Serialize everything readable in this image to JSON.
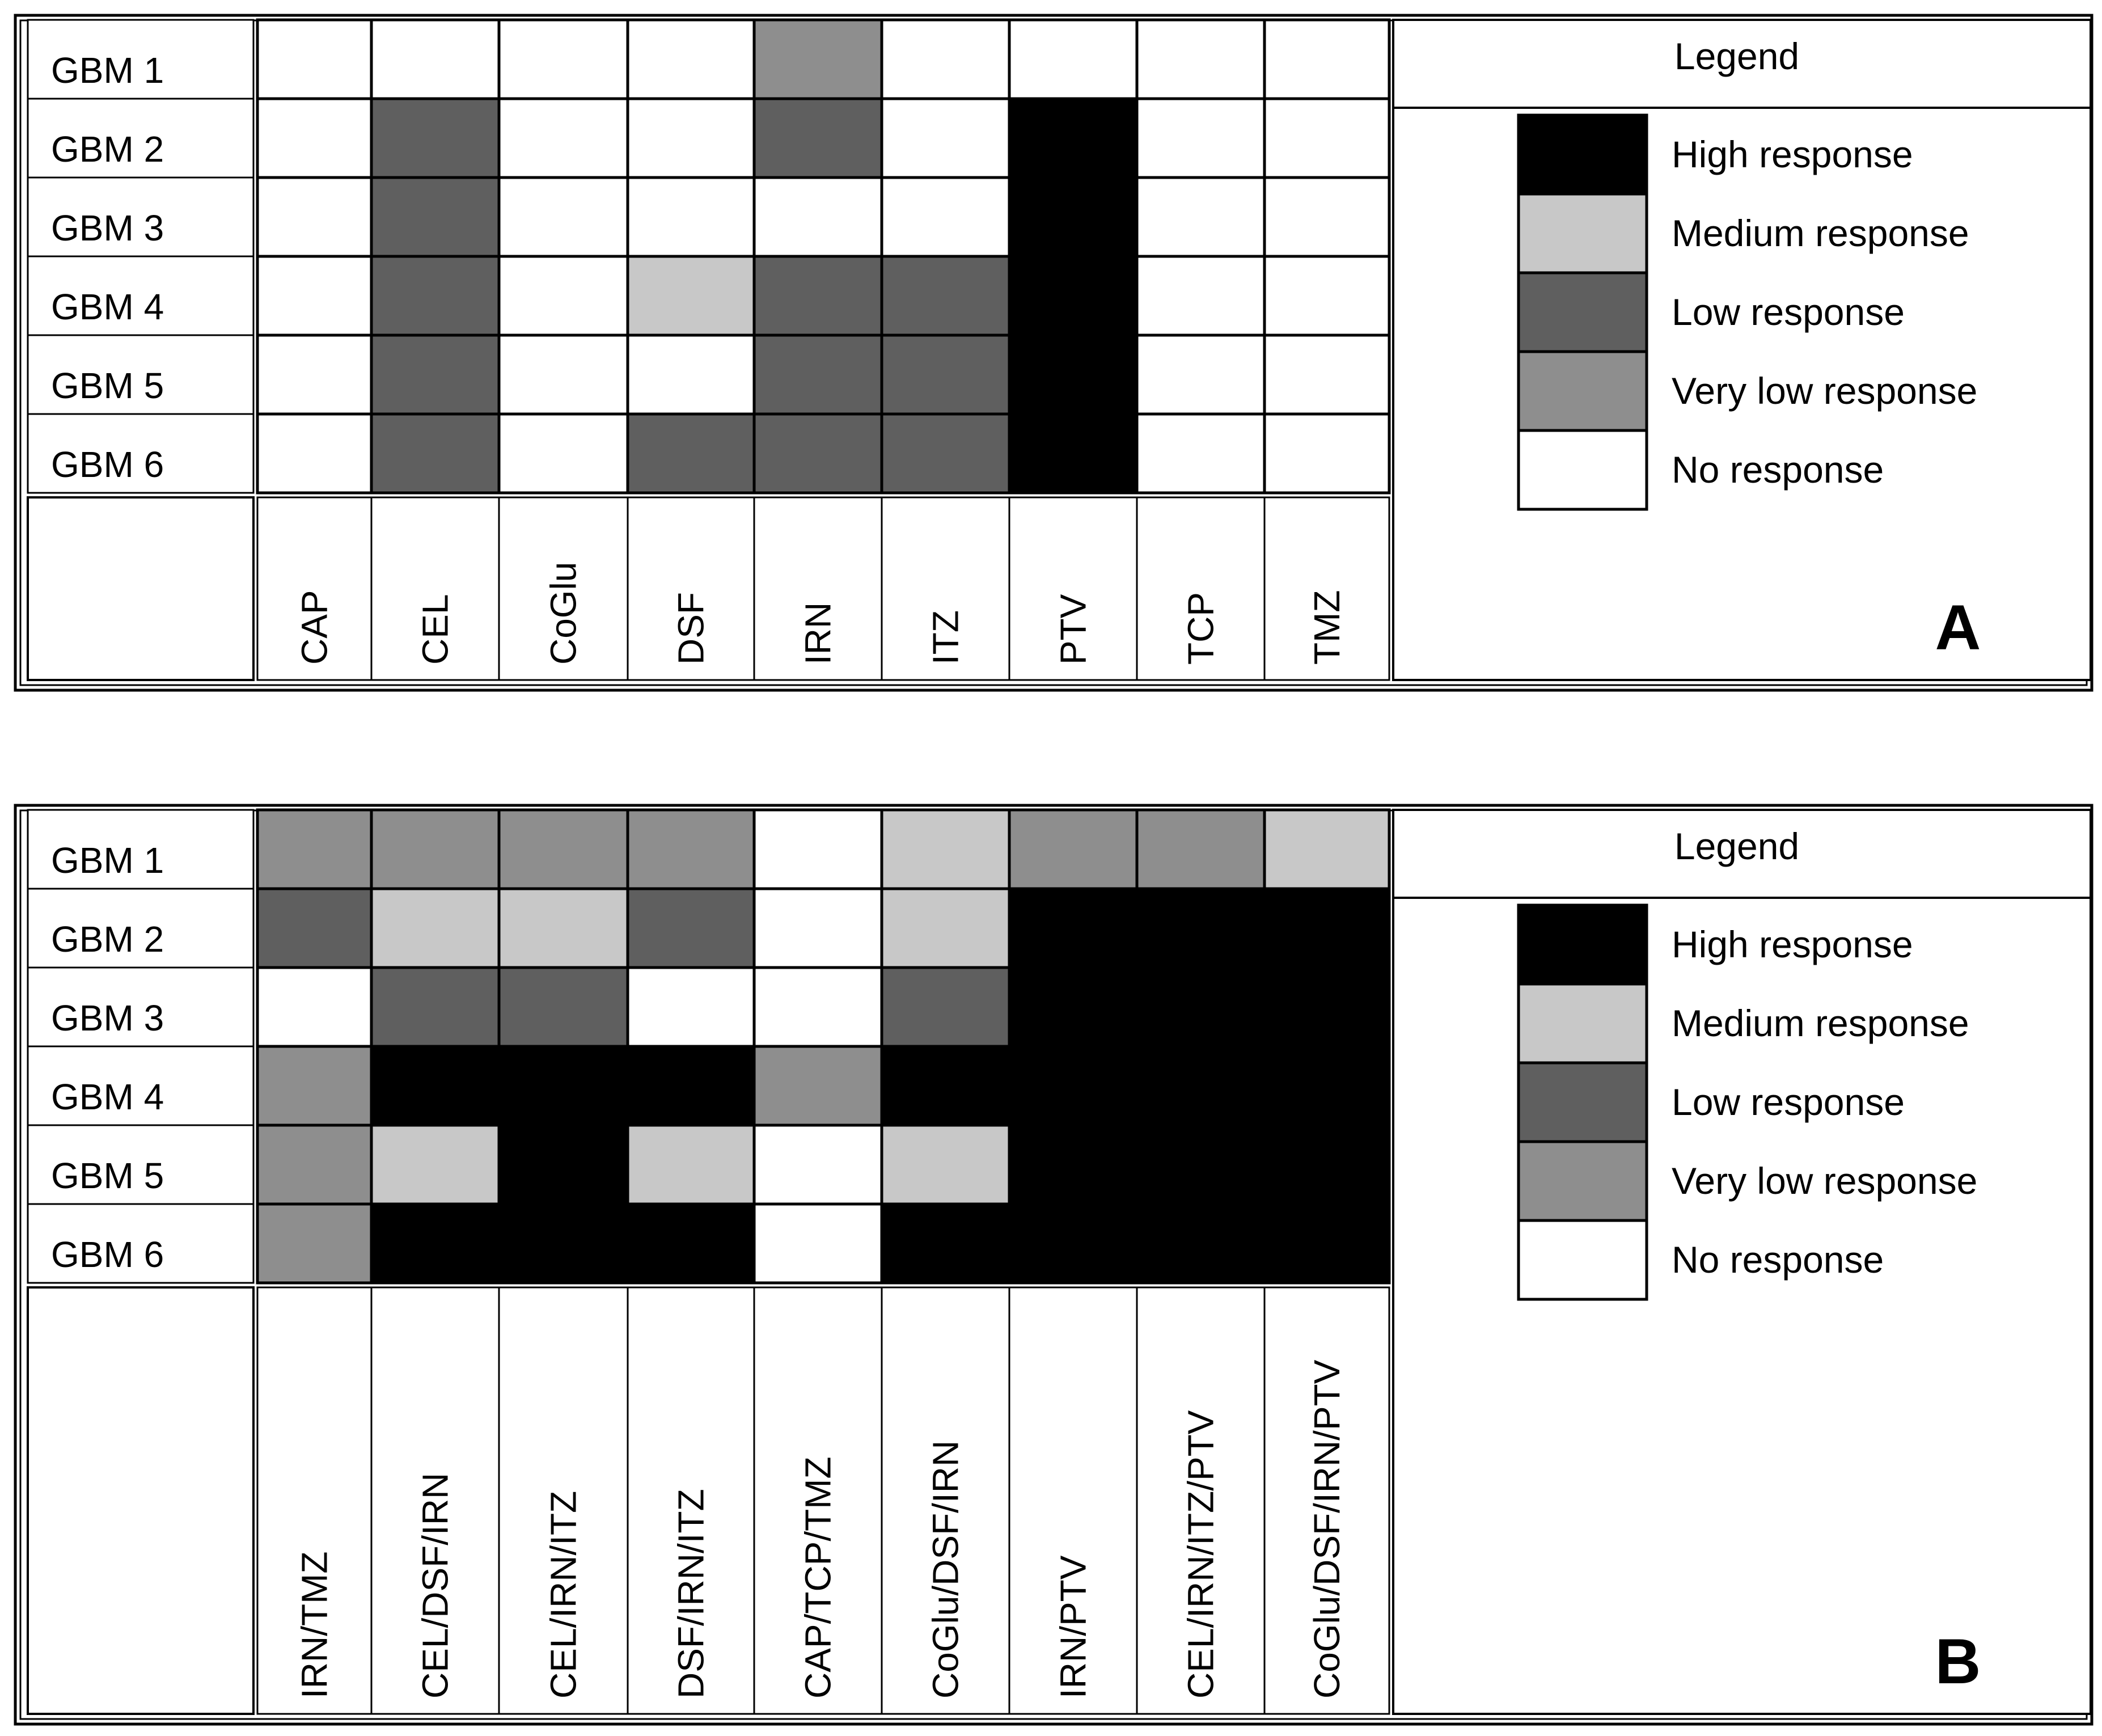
{
  "chart_data": [
    {
      "type": "heatmap",
      "panel_label": "A",
      "legend_title": "Legend",
      "rows": [
        "GBM 1",
        "GBM 2",
        "GBM 3",
        "GBM 4",
        "GBM 5",
        "GBM 6"
      ],
      "columns": [
        "CAP",
        "CEL",
        "CoGlu",
        "DSF",
        "IRN",
        "ITZ",
        "PTV",
        "TCP",
        "TMZ"
      ],
      "legend": [
        {
          "level": "high",
          "label": "High response",
          "color": "#000000"
        },
        {
          "level": "medium",
          "label": "Medium response",
          "color": "#c8c8c8"
        },
        {
          "level": "low",
          "label": "Low response",
          "color": "#5f5f5f"
        },
        {
          "level": "very_low",
          "label": "Very low response",
          "color": "#8e8e8e"
        },
        {
          "level": "none",
          "label": "No response",
          "color": "#ffffff"
        }
      ],
      "values": [
        [
          "none",
          "none",
          "none",
          "none",
          "very_low",
          "none",
          "none",
          "none",
          "none"
        ],
        [
          "none",
          "low",
          "none",
          "none",
          "low",
          "none",
          "high",
          "none",
          "none"
        ],
        [
          "none",
          "low",
          "none",
          "none",
          "none",
          "none",
          "high",
          "none",
          "none"
        ],
        [
          "none",
          "low",
          "none",
          "medium",
          "low",
          "low",
          "high",
          "none",
          "none"
        ],
        [
          "none",
          "low",
          "none",
          "none",
          "low",
          "low",
          "high",
          "none",
          "none"
        ],
        [
          "none",
          "low",
          "none",
          "low",
          "low",
          "low",
          "high",
          "none",
          "none"
        ]
      ]
    },
    {
      "type": "heatmap",
      "panel_label": "B",
      "legend_title": "Legend",
      "rows": [
        "GBM 1",
        "GBM 2",
        "GBM 3",
        "GBM 4",
        "GBM 5",
        "GBM 6"
      ],
      "columns": [
        "IRN/TMZ",
        "CEL/DSF/IRN",
        "CEL/IRN/ITZ",
        "DSF/IRN/ITZ",
        "CAP/TCP/TMZ",
        "CoGlu/DSF/IRN",
        "IRN/PTV",
        "CEL/IRN/ITZ/PTV",
        "CoGlu/DSF/IRN/PTV"
      ],
      "legend": [
        {
          "level": "high",
          "label": "High response",
          "color": "#000000"
        },
        {
          "level": "medium",
          "label": "Medium response",
          "color": "#c8c8c8"
        },
        {
          "level": "low",
          "label": "Low response",
          "color": "#5f5f5f"
        },
        {
          "level": "very_low",
          "label": "Very low response",
          "color": "#8e8e8e"
        },
        {
          "level": "none",
          "label": "No response",
          "color": "#ffffff"
        }
      ],
      "values": [
        [
          "very_low",
          "very_low",
          "very_low",
          "very_low",
          "none",
          "medium",
          "very_low",
          "very_low",
          "medium"
        ],
        [
          "low",
          "medium",
          "medium",
          "low",
          "none",
          "medium",
          "high",
          "high",
          "high"
        ],
        [
          "none",
          "low",
          "low",
          "none",
          "none",
          "low",
          "high",
          "high",
          "high"
        ],
        [
          "very_low",
          "high",
          "high",
          "high",
          "very_low",
          "high",
          "high",
          "high",
          "high"
        ],
        [
          "very_low",
          "medium",
          "high",
          "medium",
          "none",
          "medium",
          "high",
          "high",
          "high"
        ],
        [
          "very_low",
          "high",
          "high",
          "high",
          "none",
          "high",
          "high",
          "high",
          "high"
        ]
      ]
    }
  ]
}
